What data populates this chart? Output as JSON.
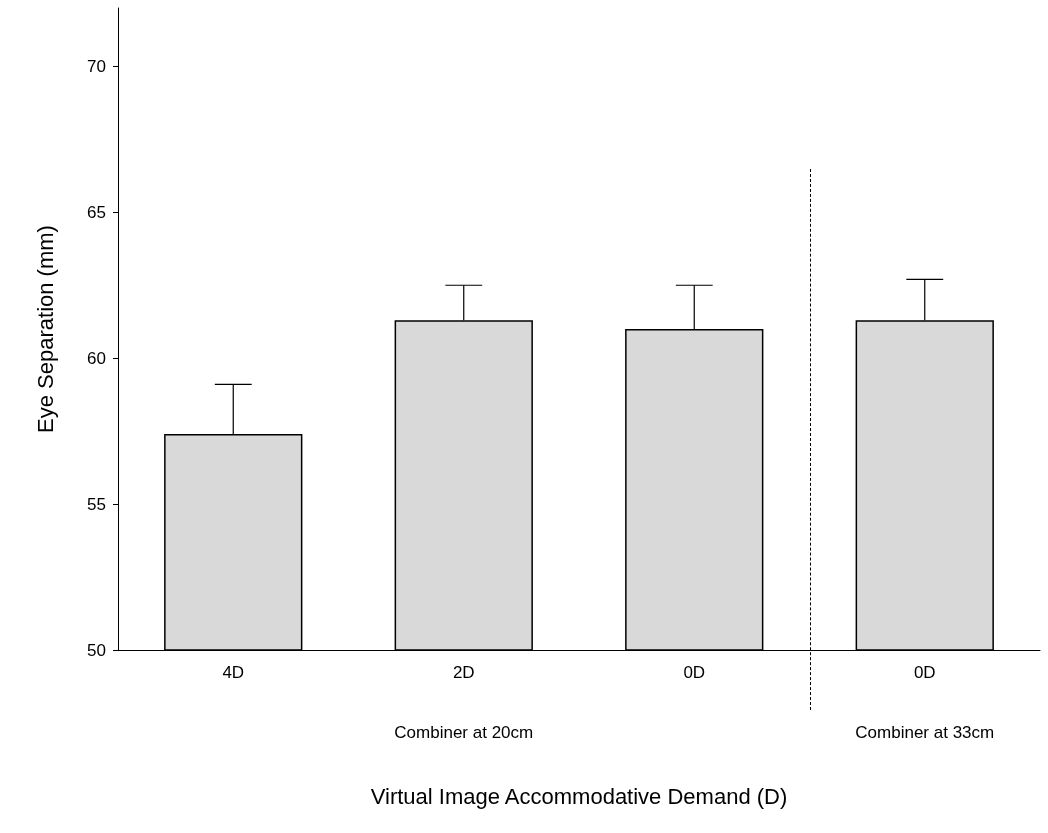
{
  "chart_data": {
    "type": "bar",
    "xlabel": "Virtual Image Accommodative Demand (D)",
    "ylabel": "Eye Separation (mm)",
    "categories": [
      "4D",
      "2D",
      "0D",
      "0D"
    ],
    "values": [
      57.4,
      61.3,
      61.0,
      61.3
    ],
    "errors": [
      [
        57.4,
        59.1
      ],
      [
        61.3,
        62.5
      ],
      [
        61.0,
        62.5
      ],
      [
        61.3,
        62.7
      ]
    ],
    "color": "#d9d9d9",
    "ylim": [
      50,
      72
    ],
    "yticks": [
      50,
      55,
      60,
      65,
      70
    ],
    "grid": false,
    "annotations": [
      "Combiner at 20cm",
      "Combiner at 33cm"
    ]
  }
}
